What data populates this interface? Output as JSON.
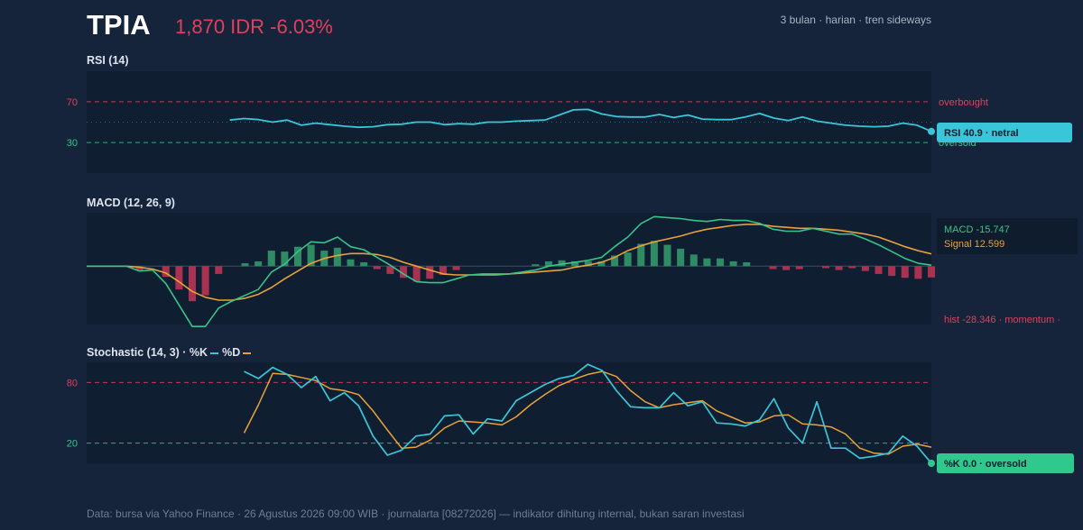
{
  "header": {
    "ticker": "TPIA",
    "price": "1,870 IDR -6.03%",
    "meta": "3 bulan · harian · tren sideways"
  },
  "footer": "Data: bursa via Yahoo Finance · 26 Agustus 2026 09:00 WIB · journalarta [08272026] — indikator dihitung internal, bukan saran investasi",
  "colors": {
    "background": "#15243a",
    "panel": "#101e31",
    "rsi_line": "#38c6d8",
    "macd_line": "#36c48a",
    "signal_line": "#e8a23a",
    "hist_pos": "#2e8b63",
    "hist_neg": "#a8324f",
    "overbought": "#e0405a",
    "oversold": "#2fc98e"
  },
  "chart_data": [
    {
      "type": "line",
      "title": "RSI (14)",
      "ylim": [
        0,
        100
      ],
      "ticks": [
        70,
        30
      ],
      "levels": [
        {
          "value": 70,
          "label": "overbought"
        },
        {
          "value": 30,
          "label": "oversold"
        }
      ],
      "midline": 50,
      "x_count": 60,
      "x_start": 14,
      "series": [
        {
          "values": [
            52,
            53.5,
            52.5,
            50,
            52,
            47,
            49,
            47.5,
            46,
            45,
            45.5,
            47.5,
            48,
            50,
            50,
            47.5,
            48.5,
            48,
            50,
            50,
            51,
            51.5,
            52,
            57,
            62,
            62.5,
            58,
            55.5,
            55,
            55,
            57.5,
            54.5,
            57,
            53,
            52.5,
            52.5,
            55,
            58.5,
            54,
            51.5,
            55,
            51,
            49,
            47,
            46,
            45.5,
            46,
            49,
            47,
            40.9
          ]
        }
      ],
      "badge": "RSI 40.9 · netral"
    },
    {
      "type": "line",
      "title": "MACD (12, 26, 9)",
      "ylim": [
        -60,
        55
      ],
      "x_count": 60,
      "series": [
        {
          "name": "MACD",
          "values": [
            0,
            0,
            0,
            0,
            -5,
            -4,
            -18,
            -40,
            -62,
            -62,
            -43,
            -36,
            -30,
            -24,
            -6,
            2,
            15,
            25,
            24,
            30,
            20,
            17,
            9,
            1,
            -8,
            -16,
            -17,
            -17,
            -13,
            -9,
            -8,
            -8,
            -8,
            -6,
            -4,
            0,
            2,
            4,
            6,
            9,
            20,
            30,
            44,
            51,
            50,
            49,
            47,
            46,
            48,
            47,
            47,
            44,
            38,
            36,
            36,
            39,
            36,
            33,
            33,
            28,
            22,
            15,
            8,
            3,
            1,
            0,
            -7,
            -15.747
          ]
        },
        {
          "name": "Signal",
          "values": [
            0,
            0,
            0,
            0,
            -1,
            -3,
            -7,
            -16,
            -26,
            -32,
            -35,
            -35,
            -33,
            -29,
            -22,
            -13,
            -5,
            3,
            8,
            11,
            13,
            13,
            12,
            9,
            4,
            0,
            -4,
            -8,
            -9,
            -9,
            -9,
            -9,
            -8,
            -7,
            -6,
            -5,
            -4,
            -1,
            1,
            4,
            9,
            16,
            21,
            25,
            28,
            31,
            35,
            38,
            40,
            42,
            43,
            43,
            41,
            40,
            39,
            39,
            38,
            37,
            35,
            33,
            30,
            25,
            20,
            16,
            12.599
          ]
        }
      ],
      "hist_label": "hist -28.346 · momentum ·",
      "legend": [
        "MACD -15.747",
        "Signal 12.599"
      ]
    },
    {
      "type": "line",
      "title": "Stochastic (14, 3) · %K",
      "legend": [
        "%K",
        "%D"
      ],
      "ylim": [
        0,
        100
      ],
      "ticks": [
        80,
        20
      ],
      "levels": [
        {
          "value": 80,
          "label": ""
        },
        {
          "value": 20,
          "label": ""
        }
      ],
      "x_count": 60,
      "x_start": 13,
      "series": [
        {
          "name": "%K",
          "values": [
            91,
            84,
            95,
            88,
            75,
            86,
            62,
            70,
            57,
            27,
            8,
            13,
            27,
            29,
            47,
            48,
            29,
            44,
            42,
            62,
            70,
            78,
            84,
            87,
            98,
            92,
            72,
            56,
            55,
            55,
            70,
            57,
            61,
            40,
            39,
            37,
            43,
            64,
            35,
            20,
            61,
            15,
            15,
            5,
            7,
            10,
            27,
            17,
            0
          ]
        },
        {
          "name": "%D",
          "values": [
            30,
            58,
            89,
            88,
            85,
            82,
            74,
            72,
            68,
            52,
            33,
            15,
            16,
            23,
            35,
            42,
            41,
            40,
            38,
            46,
            58,
            68,
            77,
            83,
            88,
            91,
            86,
            72,
            61,
            55,
            58,
            60,
            62,
            52,
            46,
            40,
            41,
            47,
            48,
            39,
            38,
            36,
            29,
            15,
            10,
            9,
            17,
            19,
            16
          ]
        }
      ],
      "badge": "%K 0.0 · oversold"
    }
  ]
}
